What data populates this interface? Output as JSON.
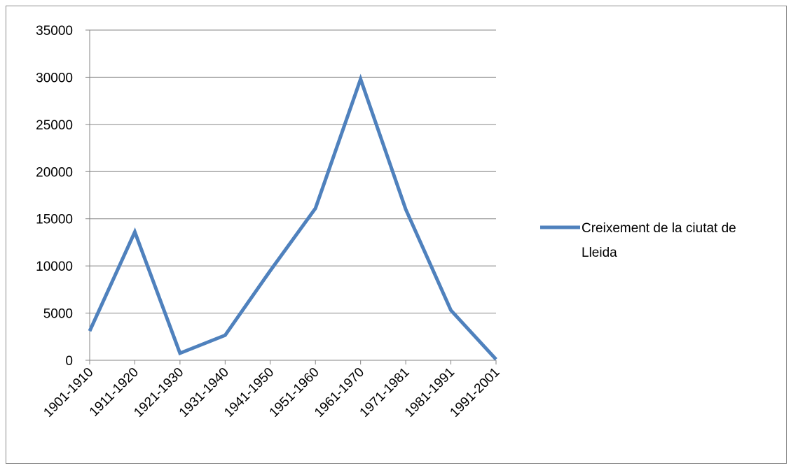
{
  "chart_data": {
    "type": "line",
    "title": "",
    "xlabel": "",
    "ylabel": "",
    "categories": [
      "1901-1910",
      "1911-1920",
      "1921-1930",
      "1931-1940",
      "1941-1950",
      "1951-1960",
      "1961-1970",
      "1971-1981",
      "1981-1991",
      "1991-2001"
    ],
    "series": [
      {
        "name": "Creixement de la ciutat de Lleida",
        "name_lines": [
          "Creixement de la ciutat de",
          "Lleida"
        ],
        "color": "#4f81bd",
        "values": [
          3100,
          13600,
          750,
          2650,
          9500,
          16100,
          29800,
          16000,
          5300,
          100
        ]
      }
    ],
    "ylim": [
      0,
      35000
    ],
    "yticks": [
      0,
      5000,
      10000,
      15000,
      20000,
      25000,
      30000,
      35000
    ],
    "grid": "horizontal",
    "legend_position": "right",
    "gridline_color": "#868686"
  }
}
